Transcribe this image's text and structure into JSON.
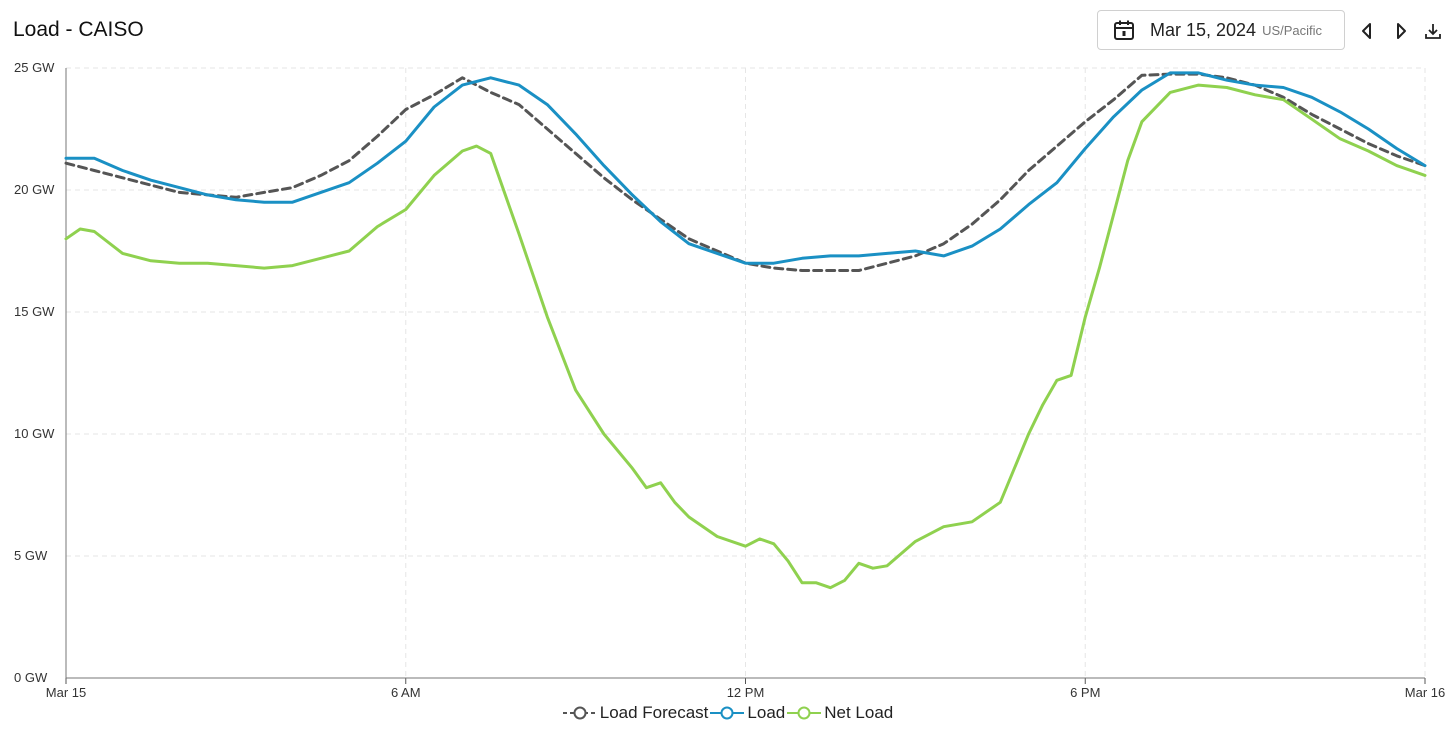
{
  "header": {
    "title": "Load - CAISO",
    "date": "Mar 15, 2024",
    "timezone": "US/Pacific"
  },
  "icons": {
    "calendar": "calendar-icon",
    "prev": "caret-left-icon",
    "next": "caret-right-icon",
    "download": "download-icon"
  },
  "colors": {
    "load_forecast": "#555555",
    "load": "#1a90c4",
    "net_load": "#8fd14f",
    "grid": "#e6e6e6"
  },
  "chart_data": {
    "type": "line",
    "xlabel": "",
    "ylabel": "",
    "x_unit": "hours since Mar 15 00:00",
    "xlim": [
      0,
      24
    ],
    "ylim": [
      0,
      25
    ],
    "x_ticks": [
      {
        "value": 0,
        "label": "Mar 15"
      },
      {
        "value": 6,
        "label": "6 AM"
      },
      {
        "value": 12,
        "label": "12 PM"
      },
      {
        "value": 18,
        "label": "6 PM"
      },
      {
        "value": 24,
        "label": "Mar 16"
      }
    ],
    "y_ticks": [
      {
        "value": 0,
        "label": "0 GW"
      },
      {
        "value": 5,
        "label": "5 GW"
      },
      {
        "value": 10,
        "label": "10 GW"
      },
      {
        "value": 15,
        "label": "15 GW"
      },
      {
        "value": 20,
        "label": "20 GW"
      },
      {
        "value": 25,
        "label": "25 GW"
      }
    ],
    "grid": true,
    "legend_position": "bottom-center",
    "series": [
      {
        "name": "Load Forecast",
        "style": "dashed",
        "x": [
          0,
          0.5,
          1,
          1.5,
          2,
          2.5,
          3,
          3.5,
          4,
          4.5,
          5,
          5.5,
          6,
          6.5,
          7,
          7.5,
          8,
          8.5,
          9,
          9.5,
          10,
          10.5,
          11,
          11.5,
          12,
          12.5,
          13,
          13.5,
          14,
          14.5,
          15,
          15.5,
          16,
          16.5,
          17,
          17.5,
          18,
          18.5,
          19,
          19.5,
          20,
          20.5,
          21,
          21.5,
          22,
          22.5,
          23,
          23.5,
          24
        ],
        "y": [
          21.1,
          20.8,
          20.5,
          20.2,
          19.9,
          19.8,
          19.7,
          19.9,
          20.1,
          20.6,
          21.2,
          22.2,
          23.3,
          23.9,
          24.6,
          24.0,
          23.5,
          22.5,
          21.5,
          20.5,
          19.6,
          18.8,
          18.0,
          17.5,
          17.0,
          16.8,
          16.7,
          16.7,
          16.7,
          17.0,
          17.3,
          17.8,
          18.6,
          19.6,
          20.8,
          21.8,
          22.8,
          23.7,
          24.7,
          24.75,
          24.75,
          24.6,
          24.3,
          23.8,
          23.1,
          22.5,
          21.9,
          21.4,
          21.0
        ]
      },
      {
        "name": "Load",
        "style": "solid",
        "x": [
          0,
          0.5,
          1,
          1.5,
          2,
          2.5,
          3,
          3.5,
          4,
          4.5,
          5,
          5.5,
          6,
          6.5,
          7,
          7.5,
          8,
          8.5,
          9,
          9.5,
          10,
          10.5,
          11,
          11.5,
          12,
          12.5,
          13,
          13.5,
          14,
          14.5,
          15,
          15.5,
          16,
          16.5,
          17,
          17.5,
          18,
          18.5,
          19,
          19.5,
          20,
          20.5,
          21,
          21.5,
          22,
          22.5,
          23,
          23.5,
          24
        ],
        "y": [
          21.3,
          21.3,
          20.8,
          20.4,
          20.1,
          19.8,
          19.6,
          19.5,
          19.5,
          19.9,
          20.3,
          21.1,
          22.0,
          23.4,
          24.3,
          24.6,
          24.3,
          23.5,
          22.3,
          21.0,
          19.8,
          18.7,
          17.8,
          17.4,
          17.0,
          17.0,
          17.2,
          17.3,
          17.3,
          17.4,
          17.5,
          17.3,
          17.7,
          18.4,
          19.4,
          20.3,
          21.7,
          23.0,
          24.1,
          24.8,
          24.8,
          24.5,
          24.3,
          24.2,
          23.8,
          23.2,
          22.5,
          21.7,
          21.0
        ]
      },
      {
        "name": "Net Load",
        "style": "solid",
        "x": [
          0,
          0.25,
          0.5,
          1,
          1.5,
          2,
          2.5,
          3,
          3.5,
          4,
          4.5,
          5,
          5.5,
          6,
          6.5,
          7,
          7.25,
          7.5,
          8,
          8.5,
          9,
          9.5,
          10,
          10.25,
          10.5,
          10.75,
          11,
          11.5,
          12,
          12.25,
          12.5,
          12.75,
          13,
          13.25,
          13.5,
          13.75,
          14,
          14.25,
          14.5,
          15,
          15.5,
          16,
          16.5,
          17,
          17.25,
          17.5,
          17.75,
          18,
          18.25,
          18.5,
          18.75,
          19,
          19.5,
          20,
          20.5,
          21,
          21.5,
          22,
          22.5,
          23,
          23.5,
          24
        ],
        "y": [
          18.0,
          18.4,
          18.3,
          17.4,
          17.1,
          17.0,
          17.0,
          16.9,
          16.8,
          16.9,
          17.2,
          17.5,
          18.5,
          19.2,
          20.6,
          21.6,
          21.8,
          21.5,
          18.2,
          14.8,
          11.8,
          10.0,
          8.6,
          7.8,
          8.0,
          7.2,
          6.6,
          5.8,
          5.4,
          5.7,
          5.5,
          4.8,
          3.9,
          3.9,
          3.7,
          4.0,
          4.7,
          4.5,
          4.6,
          5.6,
          6.2,
          6.4,
          7.2,
          10.0,
          11.2,
          12.2,
          12.4,
          14.8,
          16.8,
          19.0,
          21.2,
          22.8,
          24.0,
          24.3,
          24.2,
          23.9,
          23.7,
          22.9,
          22.1,
          21.6,
          21.0,
          20.6
        ]
      }
    ]
  }
}
